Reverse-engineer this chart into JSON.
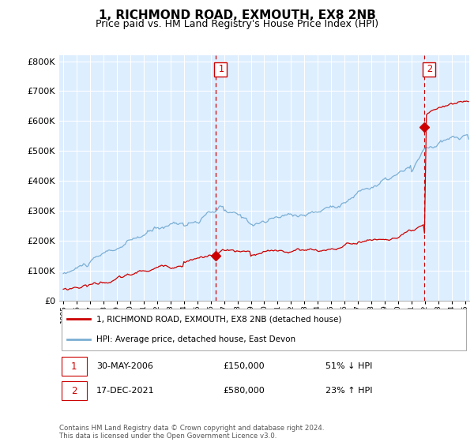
{
  "title": "1, RICHMOND ROAD, EXMOUTH, EX8 2NB",
  "subtitle": "Price paid vs. HM Land Registry's House Price Index (HPI)",
  "hpi_label": "HPI: Average price, detached house, East Devon",
  "property_label": "1, RICHMOND ROAD, EXMOUTH, EX8 2NB (detached house)",
  "footer": "Contains HM Land Registry data © Crown copyright and database right 2024.\nThis data is licensed under the Open Government Licence v3.0.",
  "transaction1": {
    "date": "30-MAY-2006",
    "price": 150000,
    "hpi_rel": "51% ↓ HPI",
    "label": "1"
  },
  "transaction2": {
    "date": "17-DEC-2021",
    "price": 580000,
    "hpi_rel": "23% ↑ HPI",
    "label": "2"
  },
  "t1_x": 2006.38,
  "t2_x": 2021.96,
  "t1_y": 150000,
  "t2_y": 580000,
  "ylim": [
    0,
    820000
  ],
  "xlim": [
    1994.7,
    2025.3
  ],
  "hpi_color": "#7bafd4",
  "price_color": "#cc0000",
  "vline_color": "#cc0000",
  "bg_color": "#ddeeff",
  "plot_bg": "#ddeeff",
  "grid_color": "#ffffff",
  "title_font": 11,
  "subtitle_font": 9
}
